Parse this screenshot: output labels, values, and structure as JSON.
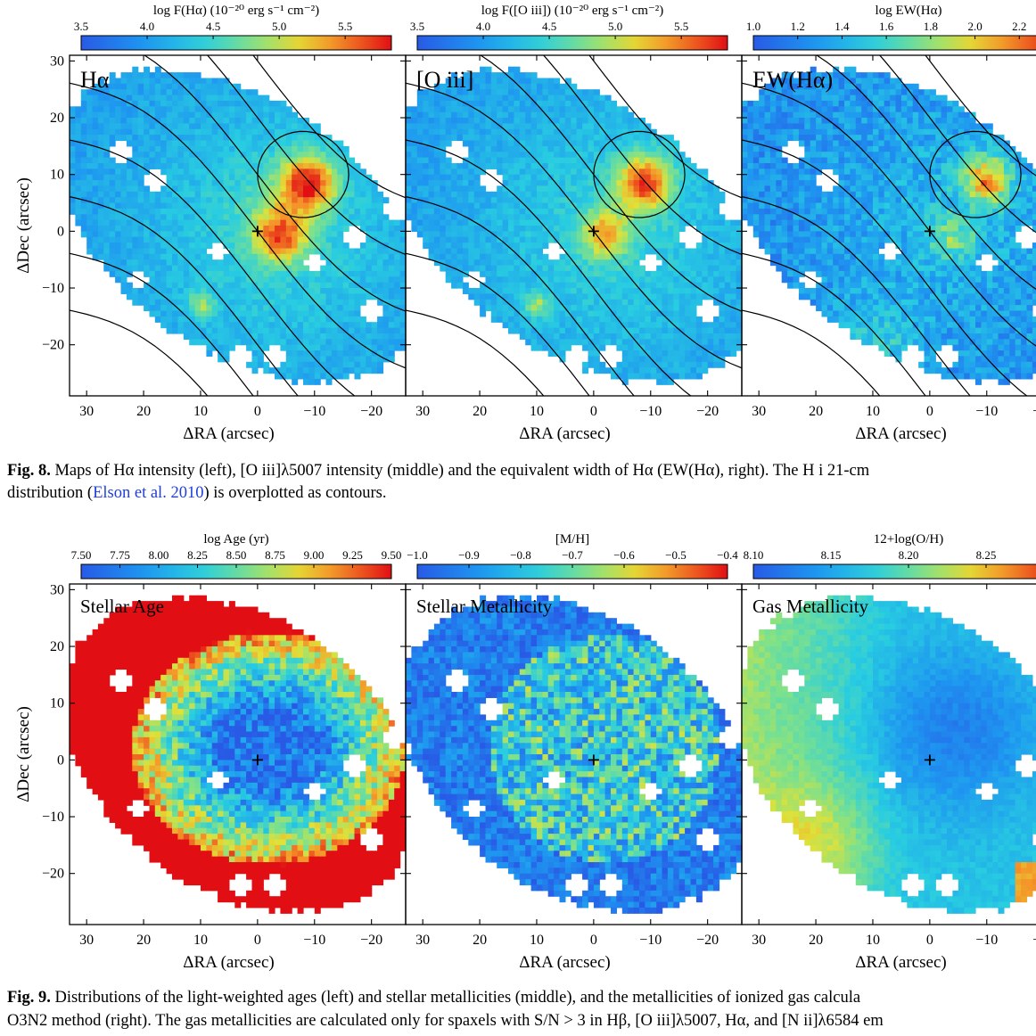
{
  "fig8": {
    "caption_label": "Fig. 8.",
    "caption_part1": "Maps of Hα intensity (left), [O iii]λ5007 intensity (middle) and the equivalent width of Hα (EW(Hα), right). The H i 21-cm",
    "caption_part2": "distribution (",
    "caption_citation": "Elson et al. 2010",
    "caption_part3": ") is overplotted as contours.",
    "panels": [
      {
        "label": "Hα",
        "colorbar_title": "log F(Hα) (10⁻²⁰ erg s⁻¹ cm⁻²)",
        "colorbar_ticks": [
          "3.5",
          "4.0",
          "4.5",
          "5.0",
          "5.5"
        ],
        "colorbar_range": [
          3.5,
          5.85
        ]
      },
      {
        "label": "[O iii]",
        "colorbar_title": "log F([O iii]) (10⁻²⁰ erg s⁻¹ cm⁻²)",
        "colorbar_ticks": [
          "3.5",
          "4.0",
          "4.5",
          "5.0",
          "5.5"
        ],
        "colorbar_range": [
          3.5,
          5.85
        ]
      },
      {
        "label": "EW(Hα)",
        "colorbar_title": "log EW(Hα)",
        "colorbar_ticks": [
          "1.0",
          "1.2",
          "1.4",
          "1.6",
          "1.8",
          "2.0",
          "2.2"
        ],
        "colorbar_range": [
          1.0,
          2.4
        ]
      }
    ]
  },
  "fig9": {
    "caption_label": "Fig. 9.",
    "caption_part1": "Distributions of the light-weighted ages (left) and stellar metallicities (middle), and the metallicities of ionized gas calcula",
    "caption_part2": "O3N2 method (right). The gas metallicities are calculated only for spaxels with S/N > 3 in Hβ, [O iii]λ5007, Hα, and [N ii]λ6584 em",
    "panels": [
      {
        "label": "Stellar Age",
        "colorbar_title": "log Age (yr)",
        "colorbar_ticks": [
          "7.50",
          "7.75",
          "8.00",
          "8.25",
          "8.50",
          "8.75",
          "9.00",
          "9.25",
          "9.50"
        ],
        "colorbar_range": [
          7.5,
          9.5
        ]
      },
      {
        "label": "Stellar Metallicity",
        "colorbar_title": "[M/H]",
        "colorbar_ticks": [
          "−1.0",
          "−0.9",
          "−0.8",
          "−0.7",
          "−0.6",
          "−0.5",
          "−0.4"
        ],
        "colorbar_range": [
          -1.0,
          -0.4
        ]
      },
      {
        "label": "Gas Metallicity",
        "colorbar_title": "12+log(O/H)",
        "colorbar_ticks": [
          "8.10",
          "8.15",
          "8.20",
          "8.25"
        ],
        "colorbar_range": [
          8.1,
          8.3
        ]
      }
    ]
  },
  "axes": {
    "xlabel": "ΔRA (arcsec)",
    "ylabel": "ΔDec (arcsec)",
    "x_ticks": [
      30,
      20,
      10,
      0,
      -10,
      -20
    ],
    "y_ticks": [
      30,
      20,
      10,
      0,
      -10,
      -20
    ],
    "x_range": [
      33,
      -26
    ],
    "y_range": [
      -29,
      31
    ],
    "center_marker": "+"
  },
  "chart_data": [
    {
      "type": "heatmap",
      "title": "Hα",
      "zlabel": "log F(Hα) (10⁻²⁰ erg s⁻¹ cm⁻²)",
      "xlabel": "ΔRA (arcsec)",
      "ylabel": "ΔDec (arcsec)",
      "xlim": [
        33,
        -26
      ],
      "ylim": [
        -29,
        31
      ],
      "zlim": [
        3.5,
        5.85
      ],
      "contours": "H i 21-cm",
      "peaks": [
        {
          "x": -9,
          "y": 8.5,
          "z": 5.7
        },
        {
          "x": -4,
          "y": -1,
          "z": 5.5
        }
      ]
    },
    {
      "type": "heatmap",
      "title": "[O iii]",
      "zlabel": "log F([O iii]) (10⁻²⁰ erg s⁻¹ cm⁻²)",
      "xlabel": "ΔRA (arcsec)",
      "ylabel": "ΔDec (arcsec)",
      "xlim": [
        33,
        -26
      ],
      "ylim": [
        -29,
        31
      ],
      "zlim": [
        3.5,
        5.85
      ],
      "contours": "H i 21-cm",
      "peaks": [
        {
          "x": -9,
          "y": 8.5,
          "z": 5.7
        },
        {
          "x": -2,
          "y": -0.5,
          "z": 5.4
        }
      ]
    },
    {
      "type": "heatmap",
      "title": "EW(Hα)",
      "zlabel": "log EW(Hα)",
      "xlabel": "ΔRA (arcsec)",
      "ylabel": "ΔDec (arcsec)",
      "xlim": [
        33,
        -26
      ],
      "ylim": [
        -29,
        31
      ],
      "zlim": [
        1.0,
        2.4
      ],
      "contours": "H i 21-cm",
      "peaks": [
        {
          "x": -10,
          "y": 9,
          "z": 2.3
        }
      ]
    },
    {
      "type": "heatmap",
      "title": "Stellar Age",
      "zlabel": "log Age (yr)",
      "xlabel": "ΔRA (arcsec)",
      "ylabel": "ΔDec (arcsec)",
      "xlim": [
        33,
        -26
      ],
      "ylim": [
        -29,
        31
      ],
      "zlim": [
        7.5,
        9.5
      ]
    },
    {
      "type": "heatmap",
      "title": "Stellar Metallicity",
      "zlabel": "[M/H]",
      "xlabel": "ΔRA (arcsec)",
      "ylabel": "ΔDec (arcsec)",
      "xlim": [
        33,
        -26
      ],
      "ylim": [
        -29,
        31
      ],
      "zlim": [
        -1.0,
        -0.4
      ]
    },
    {
      "type": "heatmap",
      "title": "Gas Metallicity",
      "zlabel": "12+log(O/H)",
      "xlabel": "ΔRA (arcsec)",
      "ylabel": "ΔDec (arcsec)",
      "xlim": [
        33,
        -26
      ],
      "ylim": [
        -29,
        31
      ],
      "zlim": [
        8.1,
        8.3
      ]
    }
  ],
  "colors": {
    "citation": "#1f3fd8",
    "contour": "#000000"
  }
}
